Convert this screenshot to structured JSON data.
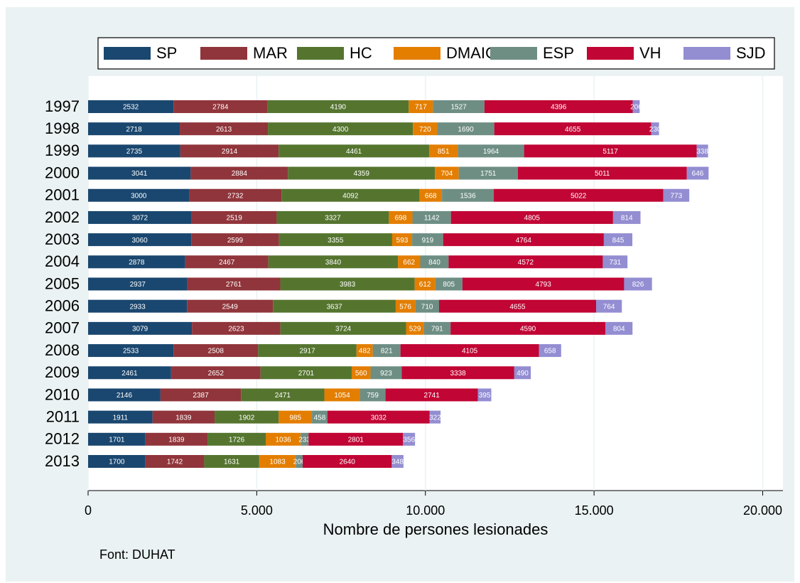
{
  "chart_data": {
    "type": "stacked_barh",
    "categories": [
      "1997",
      "1998",
      "1999",
      "2000",
      "2001",
      "2002",
      "2003",
      "2004",
      "2005",
      "2006",
      "2007",
      "2008",
      "2009",
      "2010",
      "2011",
      "2012",
      "2013"
    ],
    "series": [
      {
        "name": "SP",
        "color": "#1a476f",
        "values": [
          2532,
          2718,
          2735,
          3041,
          3000,
          3072,
          3060,
          2878,
          2937,
          2933,
          3079,
          2533,
          2461,
          2146,
          1911,
          1701,
          1700
        ]
      },
      {
        "name": "MAR",
        "color": "#90353b",
        "values": [
          2784,
          2613,
          2914,
          2884,
          2732,
          2519,
          2599,
          2467,
          2761,
          2549,
          2623,
          2508,
          2652,
          2387,
          1839,
          1839,
          1742
        ]
      },
      {
        "name": "HC",
        "color": "#55752f",
        "values": [
          4190,
          4300,
          4461,
          4359,
          4092,
          3327,
          3355,
          3840,
          3983,
          3637,
          3724,
          2917,
          2701,
          2471,
          1902,
          1726,
          1631
        ]
      },
      {
        "name": "DMAIG",
        "color": "#e37e00",
        "values": [
          717,
          720,
          851,
          704,
          668,
          698,
          593,
          662,
          612,
          576,
          529,
          482,
          560,
          1054,
          985,
          1036,
          1083
        ]
      },
      {
        "name": "ESP",
        "color": "#6e8e84",
        "values": [
          1527,
          1690,
          1964,
          1751,
          1536,
          1142,
          919,
          840,
          805,
          710,
          791,
          821,
          923,
          759,
          458,
          233,
          206
        ]
      },
      {
        "name": "VH",
        "color": "#c10534",
        "values": [
          4396,
          4655,
          5117,
          5011,
          5022,
          4805,
          4764,
          4572,
          4793,
          4655,
          4590,
          4105,
          3338,
          2741,
          3032,
          2801,
          2640
        ]
      },
      {
        "name": "SJD",
        "color": "#938dd2",
        "values": [
          206,
          230,
          338,
          646,
          773,
          814,
          845,
          731,
          826,
          764,
          804,
          658,
          490,
          395,
          322,
          356,
          348
        ]
      }
    ],
    "xlabel": "Nombre de persones lesionades",
    "note": "Font: DUHAT",
    "xlim": [
      0,
      20600
    ],
    "xticks": [
      0,
      {
        "value": 5000,
        "label": "5.000"
      },
      {
        "value": 10000,
        "label": "10.000"
      },
      {
        "value": 15000,
        "label": "15.000"
      },
      {
        "value": 20000,
        "label": "20.000"
      }
    ],
    "grid": true,
    "legend": "top"
  }
}
